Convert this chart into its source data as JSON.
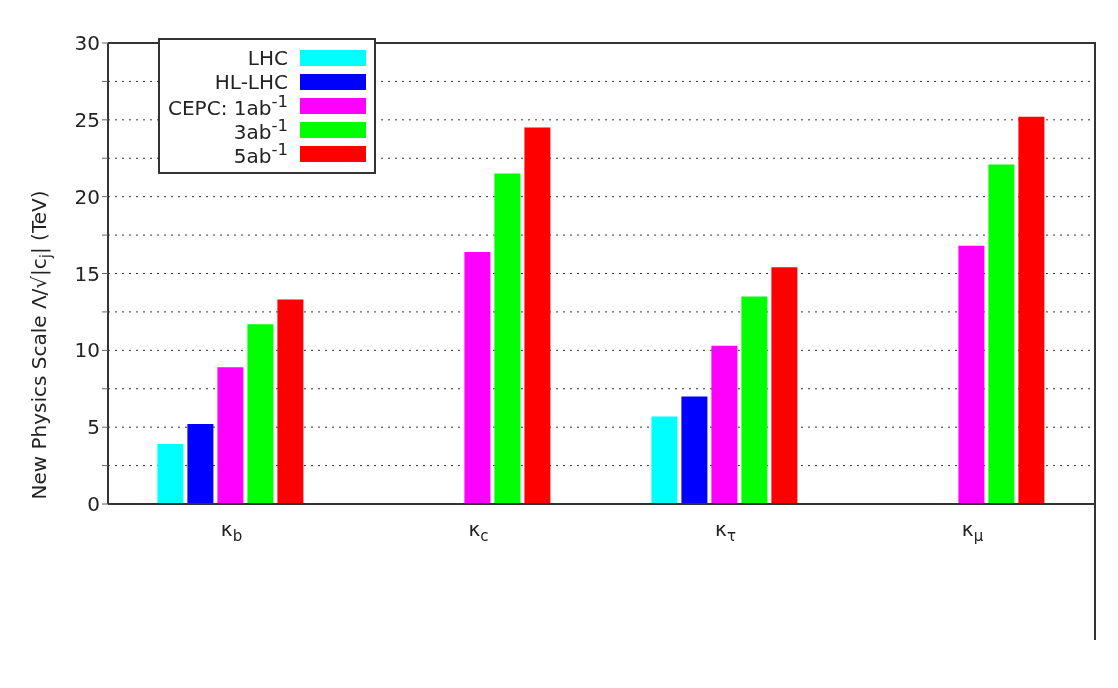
{
  "chart_data": {
    "type": "bar",
    "ylabel": "New Physics Scale Λ/√|c$_{j}$| (TeV)",
    "categories": [
      "κ$_{b}$",
      "κ$_{c}$",
      "κ$_{τ}$",
      "κ$_{μ}$"
    ],
    "series": [
      {
        "name": "LHC",
        "color": "#00ffff",
        "values": [
          3.9,
          null,
          5.7,
          null
        ]
      },
      {
        "name": "HL-LHC",
        "color": "#0000ff",
        "values": [
          5.2,
          null,
          7.0,
          null
        ]
      },
      {
        "name": "CEPC: 1ab$^{-1}$",
        "color": "#ff00ff",
        "values": [
          8.9,
          16.4,
          10.3,
          16.8
        ]
      },
      {
        "name": "3ab$^{-1}$",
        "color": "#00ff00",
        "values": [
          11.7,
          21.5,
          13.5,
          22.1
        ]
      },
      {
        "name": "5ab$^{-1}$",
        "color": "#ff0000",
        "values": [
          13.3,
          24.5,
          15.4,
          25.2
        ]
      }
    ],
    "ylim": [
      0,
      30
    ],
    "yticks": [
      0,
      {
        "value": 2.5,
        "label": null
      },
      5,
      {
        "value": 7.5,
        "label": null
      },
      10,
      {
        "value": 12.5,
        "label": null
      },
      15,
      {
        "value": 17.5,
        "label": null
      },
      20,
      {
        "value": 22.5,
        "label": null
      },
      25,
      {
        "value": 27.5,
        "label": null
      },
      30
    ],
    "grid": "y",
    "legend": "top left"
  }
}
